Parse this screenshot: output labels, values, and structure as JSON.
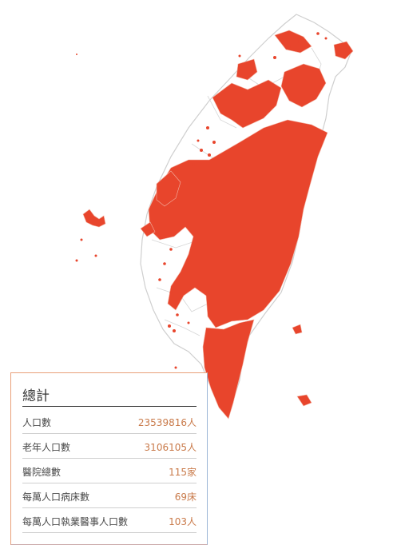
{
  "map": {
    "name": "taiwan-map",
    "highlight_color": "#e8452c",
    "base_color": "#ffffff",
    "border_color": "#cccccc"
  },
  "summary": {
    "title": "總計",
    "rows": [
      {
        "label": "人口數",
        "value": "23539816人"
      },
      {
        "label": "老年人口數",
        "value": "3106105人"
      },
      {
        "label": "醫院總數",
        "value": "115家"
      },
      {
        "label": "每萬人口病床數",
        "value": "69床"
      },
      {
        "label": "每萬人口執業醫事人口數",
        "value": "103人"
      }
    ]
  }
}
